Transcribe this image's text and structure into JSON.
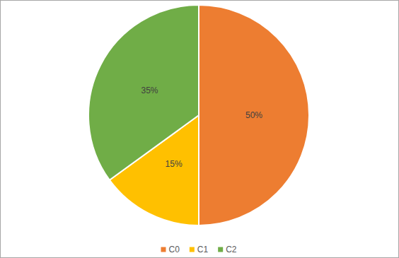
{
  "chart_data": {
    "type": "pie",
    "categories": [
      "C0",
      "C1",
      "C2"
    ],
    "values": [
      50,
      15,
      35
    ],
    "value_labels": [
      "50%",
      "15%",
      "35%"
    ],
    "colors": [
      "#ed7d31",
      "#ffc000",
      "#70ad47"
    ],
    "data_labels": true,
    "legend": "bottom"
  }
}
